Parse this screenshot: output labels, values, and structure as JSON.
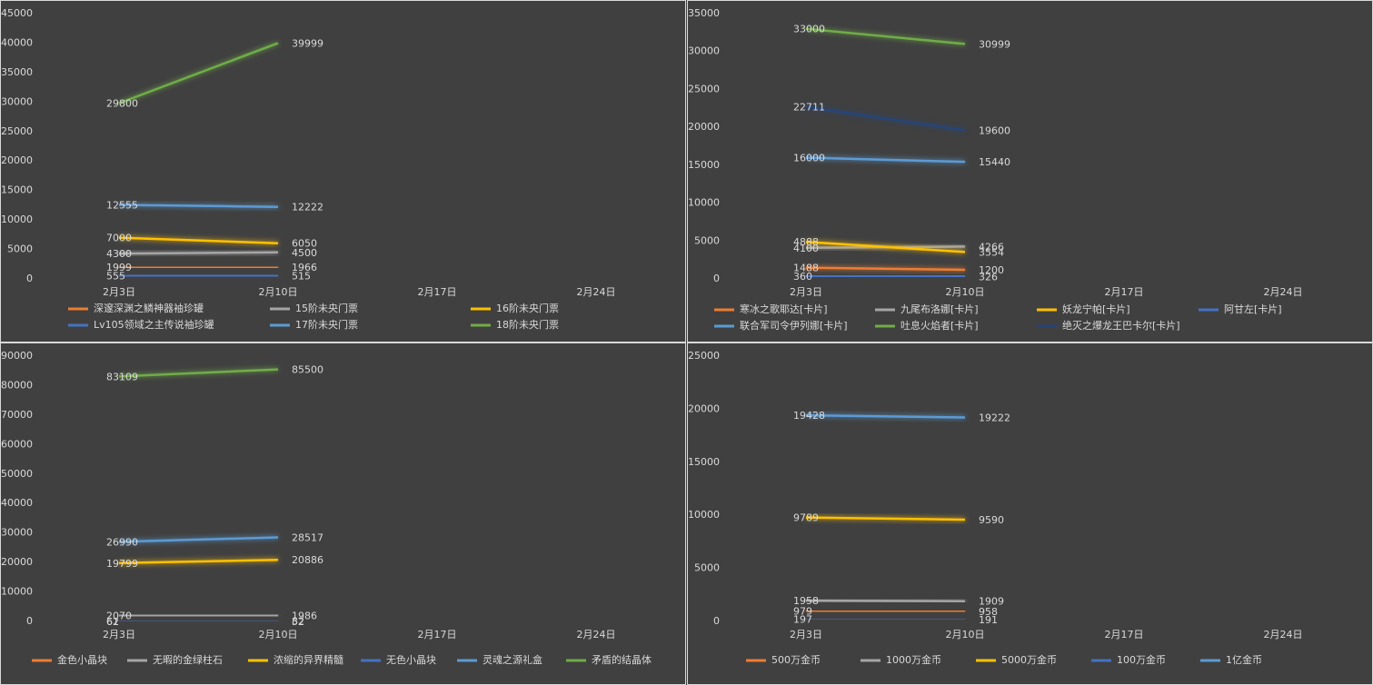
{
  "chart_data": [
    {
      "type": "line",
      "categories": [
        "2月3日",
        "2月10日",
        "2月17日",
        "2月24日"
      ],
      "ylim": [
        0,
        45000
      ],
      "yticks": [
        0,
        5000,
        10000,
        15000,
        20000,
        25000,
        30000,
        35000,
        40000,
        45000
      ],
      "grid": false,
      "series": [
        {
          "name": "深邃深渊之鳞神器袖珍罐",
          "color": "#ed7d31",
          "values": [
            1999,
            1966,
            null,
            null
          ]
        },
        {
          "name": "15阶未央门票",
          "color": "#a5a5a5",
          "values": [
            4300,
            4500,
            null,
            null
          ]
        },
        {
          "name": "16阶未央门票",
          "color": "#ffc000",
          "values": [
            7000,
            6050,
            null,
            null
          ]
        },
        {
          "name": "Lv105领域之主传说袖珍罐",
          "color": "#4472c4",
          "values": [
            555,
            515,
            null,
            null
          ]
        },
        {
          "name": "17阶未央门票",
          "color": "#5b9bd5",
          "values": [
            12555,
            12222,
            null,
            null
          ]
        },
        {
          "name": "18阶未央门票",
          "color": "#70ad47",
          "values": [
            29800,
            39999,
            null,
            null
          ]
        }
      ]
    },
    {
      "type": "line",
      "categories": [
        "2月3日",
        "2月10日",
        "2月17日",
        "2月24日"
      ],
      "ylim": [
        0,
        35000
      ],
      "yticks": [
        0,
        5000,
        10000,
        15000,
        20000,
        25000,
        30000,
        35000
      ],
      "grid": false,
      "series": [
        {
          "name": "寒冰之歌耶达[卡片]",
          "color": "#ed7d31",
          "values": [
            1488,
            1200,
            null,
            null
          ]
        },
        {
          "name": "九尾布洛娜[卡片]",
          "color": "#a5a5a5",
          "values": [
            4100,
            4266,
            null,
            null
          ]
        },
        {
          "name": "妖龙宁帕[卡片]",
          "color": "#ffc000",
          "values": [
            4888,
            3554,
            null,
            null
          ]
        },
        {
          "name": "阿甘左[卡片]",
          "color": "#4472c4",
          "values": [
            360,
            326,
            null,
            null
          ]
        },
        {
          "name": "联合军司令伊列娜[卡片]",
          "color": "#5b9bd5",
          "values": [
            16000,
            15440,
            null,
            null
          ]
        },
        {
          "name": "吐息火焰者[卡片]",
          "color": "#70ad47",
          "values": [
            33000,
            30999,
            null,
            null
          ]
        },
        {
          "name": "绝灭之爆龙王巴卡尔[卡片]",
          "color": "#264478",
          "values": [
            22711,
            19600,
            null,
            null
          ]
        }
      ]
    },
    {
      "type": "line",
      "categories": [
        "2月3日",
        "2月10日",
        "2月17日",
        "2月24日"
      ],
      "ylim": [
        0,
        90000
      ],
      "yticks": [
        0,
        10000,
        20000,
        30000,
        40000,
        50000,
        60000,
        70000,
        80000,
        90000
      ],
      "grid": false,
      "series": [
        {
          "name": "金色小晶块",
          "color": "#ed7d31",
          "values": [
            61,
            52,
            null,
            null
          ]
        },
        {
          "name": "无暇的金绿柱石",
          "color": "#a5a5a5",
          "values": [
            2070,
            1986,
            null,
            null
          ]
        },
        {
          "name": "浓缩的异界精髓",
          "color": "#ffc000",
          "values": [
            19799,
            20886,
            null,
            null
          ]
        },
        {
          "name": "无色小晶块",
          "color": "#4472c4",
          "values": [
            62,
            82,
            null,
            null
          ]
        },
        {
          "name": "灵魂之源礼盒",
          "color": "#5b9bd5",
          "values": [
            26990,
            28517,
            null,
            null
          ]
        },
        {
          "name": "矛盾的结晶体",
          "color": "#70ad47",
          "values": [
            83109,
            85500,
            null,
            null
          ]
        }
      ]
    },
    {
      "type": "line",
      "categories": [
        "2月3日",
        "2月10日",
        "2月17日",
        "2月24日"
      ],
      "ylim": [
        0,
        25000
      ],
      "yticks": [
        0,
        5000,
        10000,
        15000,
        20000,
        25000
      ],
      "grid": false,
      "series": [
        {
          "name": "500万金币",
          "color": "#ed7d31",
          "values": [
            979,
            958,
            null,
            null
          ]
        },
        {
          "name": "1000万金币",
          "color": "#a5a5a5",
          "values": [
            1958,
            1909,
            null,
            null
          ]
        },
        {
          "name": "5000万金币",
          "color": "#ffc000",
          "values": [
            9789,
            9590,
            null,
            null
          ]
        },
        {
          "name": "100万金币",
          "color": "#4472c4",
          "values": [
            197,
            191,
            null,
            null
          ]
        },
        {
          "name": "1亿金币",
          "color": "#5b9bd5",
          "values": [
            19428,
            19222,
            null,
            null
          ]
        }
      ]
    }
  ]
}
